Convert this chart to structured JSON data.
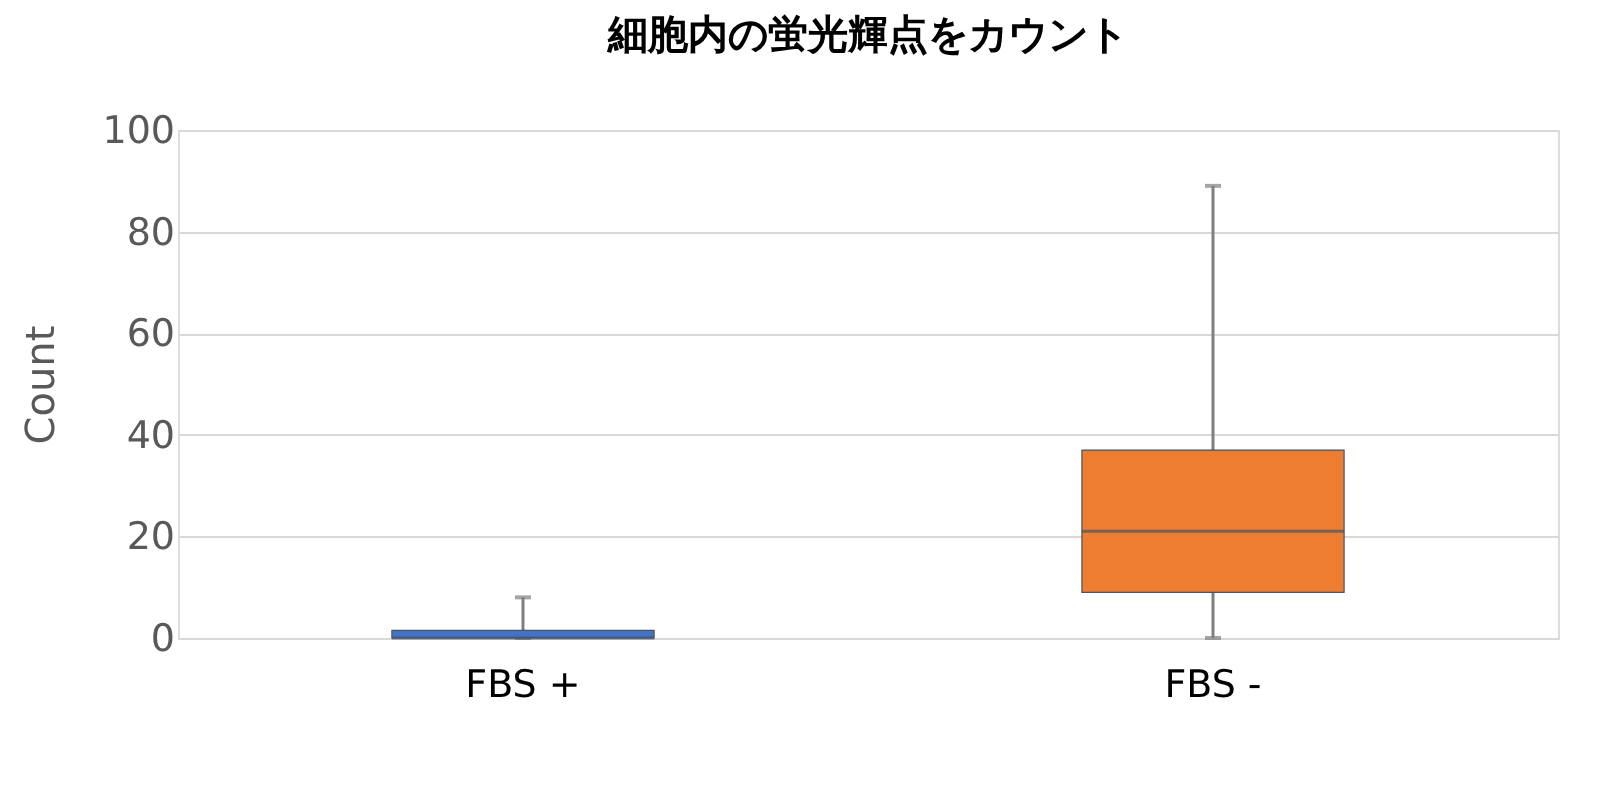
{
  "chart_data": {
    "type": "box",
    "title": "細胞内の蛍光輝点をカウント",
    "ylabel": "Count",
    "categories": [
      "FBS +",
      "FBS -"
    ],
    "colors": [
      "#4472c4",
      "#ed7d31"
    ],
    "boxes": [
      {
        "low": 0,
        "q1": 0,
        "median": 0,
        "q3": 1.5,
        "high": 8
      },
      {
        "low": 0,
        "q1": 9,
        "median": 21,
        "q3": 37,
        "high": 89
      }
    ],
    "ylim": [
      0,
      100
    ],
    "yticks": [
      0,
      20,
      40,
      60,
      80,
      100
    ],
    "grid": "y"
  }
}
